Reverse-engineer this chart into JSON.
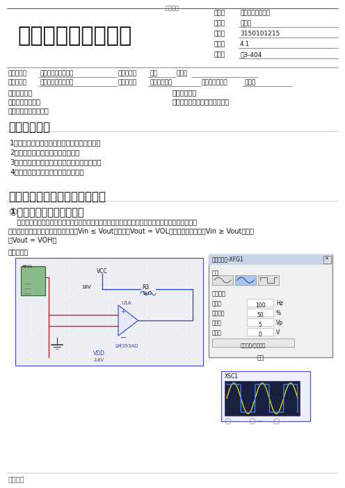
{
  "bg_color": "#ffffff",
  "header_center_text": "实用文档",
  "header_right_lines": [
    {
      "label": "专业：",
      "value": "电气工程卓越人才"
    },
    {
      "label": "姓名：",
      "value": "卢倩平"
    },
    {
      "label": "学号：",
      "value": "3150101215"
    },
    {
      "label": "日期：",
      "value": "4.1"
    },
    {
      "label": "地点：",
      "value": "东3-404"
    }
  ],
  "title_text": "、浙江大学实验报告",
  "course_row": {
    "l1": "课程名称：",
    "v1": "电路与电子技术实验",
    "l2": "指导老师：",
    "v2": "周菊",
    "l3": "成绩："
  },
  "exp_row": {
    "l1": "实验名称：",
    "v1": "电压比较器及其应用",
    "l2": "实验类型：",
    "v2": "电子电路实验",
    "l3": "同组学生姓名：",
    "v3": "邓江载"
  },
  "toc_left": [
    "一、实验目的",
    "三、主要仪器设备",
    "五、思考题及实验心得"
  ],
  "toc_right": [
    "二、实验内容",
    "四、实验数据记录、处理与分析"
  ],
  "section1_title": "一、实验目的",
  "section1_items": [
    "1．了解电压比较器与运算放大器的性能区别；",
    "2．掌握电压比较器的结构及特点；",
    "3．掌握电压比较器电压传输特性的测试方法；",
    "4．学习比较器在电路设计中的应用。"
  ],
  "section2_title": "二、实验数据记录、处理与分析",
  "subsection1_title": "①【过零电压比较器电路】",
  "body_line1": "    过零电压比较器是电压比较电路的基本结构，它可将交流信号特化为同频率的双极性矩形波。常用于",
  "body_line2": "测量正弦波的频率和信率。当输入电压Vin ≤ Vout时，输出Vout = VOL；反之，当输入电压Vin ≥ Vout时，输",
  "body_line3": "出Vout = VOH。",
  "label_sim": "实验仿真：",
  "footer_text": "文案大全",
  "circuit_color_bg": "#eeeef5",
  "circuit_color_border": "#4444bb",
  "circuit_color_red": "#cc2222",
  "circuit_color_blue": "#2244cc",
  "dlg_bg": "#f0f0f0",
  "dlg_title_bg": "#c8d4e8",
  "osc_screen_bg": "#1a2040"
}
